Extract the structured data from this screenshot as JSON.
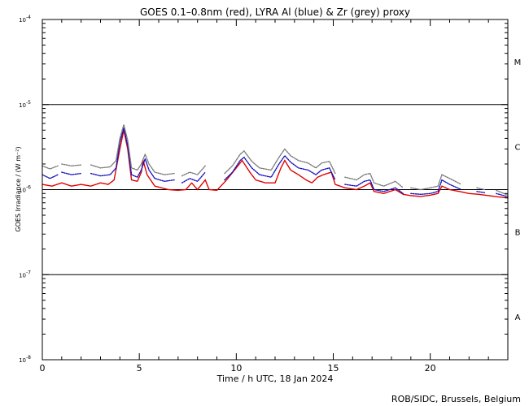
{
  "chart_data": {
    "type": "line",
    "title": "GOES 0.1–0.8nm (red), LYRA Al (blue) & Zr (grey) proxy",
    "xlabel": "Time / h UTC, 18 Jan 2024",
    "ylabel": "GOES Irradiance / (W m⁻²)",
    "footer": "ROB/SIDC, Brussels, Belgium",
    "xlim": [
      0,
      24
    ],
    "ylim": [
      1e-08,
      0.0001
    ],
    "yscale": "log",
    "xticks": [
      0,
      5,
      10,
      15,
      20
    ],
    "xtick_labels": [
      "0",
      "5",
      "10",
      "15",
      "20"
    ],
    "yticks": [
      {
        "value": 0.0001,
        "base": "10",
        "exp": "-4"
      },
      {
        "value": 1e-05,
        "base": "10",
        "exp": "-5"
      },
      {
        "value": 1e-06,
        "base": "10",
        "exp": "-6"
      },
      {
        "value": 1e-07,
        "base": "10",
        "exp": "-7"
      },
      {
        "value": 1e-08,
        "base": "10",
        "exp": "-8"
      }
    ],
    "reference_lines": [
      1e-05,
      1e-06,
      1e-07
    ],
    "flare_classes": [
      {
        "label": "M",
        "value": 3.2e-05
      },
      {
        "label": "C",
        "value": 3.2e-06
      },
      {
        "label": "B",
        "value": 3.2e-07
      },
      {
        "label": "A",
        "value": 3.2e-08
      }
    ],
    "series": [
      {
        "color": "#e00000",
        "segments": [
          [
            [
              0.0,
              1.15e-06
            ],
            [
              0.5,
              1.1e-06
            ],
            [
              1.0,
              1.2e-06
            ],
            [
              1.5,
              1.1e-06
            ],
            [
              2.0,
              1.15e-06
            ],
            [
              2.5,
              1.1e-06
            ],
            [
              3.0,
              1.2e-06
            ],
            [
              3.4,
              1.15e-06
            ],
            [
              3.7,
              1.3e-06
            ],
            [
              4.0,
              3e-06
            ],
            [
              4.2,
              5e-06
            ],
            [
              4.4,
              3e-06
            ],
            [
              4.6,
              1.3e-06
            ],
            [
              4.9,
              1.25e-06
            ],
            [
              5.1,
              1.6e-06
            ],
            [
              5.2,
              2.2e-06
            ],
            [
              5.4,
              1.5e-06
            ],
            [
              5.8,
              1.1e-06
            ],
            [
              6.5,
              1e-06
            ],
            [
              7.0,
              9.8e-07
            ],
            [
              7.4,
              1e-06
            ],
            [
              7.7,
              1.2e-06
            ],
            [
              8.0,
              1e-06
            ],
            [
              8.4,
              1.3e-06
            ],
            [
              8.6,
              1e-06
            ],
            [
              9.0,
              9.8e-07
            ],
            [
              9.5,
              1.3e-06
            ],
            [
              10.0,
              1.8e-06
            ],
            [
              10.3,
              2.2e-06
            ],
            [
              10.7,
              1.6e-06
            ],
            [
              11.0,
              1.3e-06
            ],
            [
              11.5,
              1.2e-06
            ],
            [
              12.0,
              1.2e-06
            ],
            [
              12.3,
              1.8e-06
            ],
            [
              12.5,
              2.2e-06
            ],
            [
              12.8,
              1.7e-06
            ],
            [
              13.2,
              1.5e-06
            ],
            [
              13.6,
              1.3e-06
            ],
            [
              13.9,
              1.2e-06
            ],
            [
              14.2,
              1.4e-06
            ],
            [
              14.5,
              1.5e-06
            ],
            [
              14.9,
              1.6e-06
            ],
            [
              15.1,
              1.15e-06
            ],
            [
              15.6,
              1.05e-06
            ],
            [
              16.2,
              1e-06
            ],
            [
              16.6,
              1.1e-06
            ],
            [
              16.9,
              1.2e-06
            ],
            [
              17.1,
              9.5e-07
            ],
            [
              17.6,
              9e-07
            ],
            [
              18.2,
              1e-06
            ],
            [
              18.6,
              8.8e-07
            ],
            [
              19.0,
              8.5e-07
            ],
            [
              19.5,
              8.3e-07
            ],
            [
              20.0,
              8.6e-07
            ],
            [
              20.4,
              9e-07
            ],
            [
              20.6,
              1.1e-06
            ],
            [
              21.0,
              1e-06
            ],
            [
              21.5,
              9.5e-07
            ],
            [
              22.0,
              9e-07
            ],
            [
              22.5,
              8.8e-07
            ],
            [
              23.0,
              8.5e-07
            ],
            [
              23.5,
              8.2e-07
            ],
            [
              24.0,
              8e-07
            ]
          ]
        ]
      },
      {
        "color": "#1010c0",
        "segments": [
          [
            [
              0.0,
              1.5e-06
            ],
            [
              0.4,
              1.35e-06
            ],
            [
              0.8,
              1.5e-06
            ]
          ],
          [
            [
              1.0,
              1.6e-06
            ],
            [
              1.5,
              1.5e-06
            ],
            [
              2.0,
              1.55e-06
            ]
          ],
          [
            [
              2.5,
              1.55e-06
            ],
            [
              3.0,
              1.45e-06
            ],
            [
              3.5,
              1.5e-06
            ],
            [
              3.8,
              1.8e-06
            ],
            [
              4.0,
              3.6e-06
            ],
            [
              4.2,
              5.3e-06
            ],
            [
              4.4,
              3.3e-06
            ],
            [
              4.6,
              1.5e-06
            ],
            [
              4.9,
              1.4e-06
            ],
            [
              5.1,
              1.7e-06
            ],
            [
              5.3,
              2.3e-06
            ],
            [
              5.5,
              1.7e-06
            ],
            [
              5.8,
              1.35e-06
            ],
            [
              6.3,
              1.25e-06
            ],
            [
              6.8,
              1.3e-06
            ]
          ],
          [
            [
              7.2,
              1.2e-06
            ],
            [
              7.6,
              1.35e-06
            ],
            [
              8.0,
              1.25e-06
            ],
            [
              8.4,
              1.6e-06
            ]
          ],
          [
            [
              9.4,
              1.3e-06
            ],
            [
              9.8,
              1.6e-06
            ],
            [
              10.2,
              2.2e-06
            ],
            [
              10.4,
              2.4e-06
            ],
            [
              10.8,
              1.8e-06
            ],
            [
              11.2,
              1.5e-06
            ],
            [
              11.8,
              1.4e-06
            ],
            [
              12.2,
              2e-06
            ],
            [
              12.5,
              2.5e-06
            ],
            [
              12.8,
              2.1e-06
            ],
            [
              13.2,
              1.8e-06
            ],
            [
              13.7,
              1.7e-06
            ],
            [
              14.1,
              1.5e-06
            ],
            [
              14.4,
              1.7e-06
            ],
            [
              14.8,
              1.8e-06
            ],
            [
              15.1,
              1.3e-06
            ]
          ],
          [
            [
              15.6,
              1.15e-06
            ],
            [
              16.2,
              1.1e-06
            ],
            [
              16.6,
              1.25e-06
            ],
            [
              16.9,
              1.3e-06
            ],
            [
              17.1,
              1e-06
            ],
            [
              17.6,
              9.5e-07
            ],
            [
              18.2,
              1.05e-06
            ],
            [
              18.6,
              9e-07
            ]
          ],
          [
            [
              19.0,
              9e-07
            ],
            [
              19.5,
              8.8e-07
            ],
            [
              20.0,
              9e-07
            ],
            [
              20.4,
              9.5e-07
            ],
            [
              20.6,
              1.3e-06
            ],
            [
              21.0,
              1.15e-06
            ],
            [
              21.6,
              1e-06
            ]
          ],
          [
            [
              22.4,
              9.5e-07
            ],
            [
              22.8,
              9.2e-07
            ]
          ],
          [
            [
              23.4,
              9e-07
            ],
            [
              23.8,
              8.5e-07
            ],
            [
              24.0,
              8.2e-07
            ]
          ]
        ]
      },
      {
        "color": "#7a7a7a",
        "segments": [
          [
            [
              0.0,
              1.9e-06
            ],
            [
              0.4,
              1.75e-06
            ],
            [
              0.8,
              1.9e-06
            ]
          ],
          [
            [
              1.0,
              2e-06
            ],
            [
              1.5,
              1.9e-06
            ],
            [
              2.0,
              1.95e-06
            ]
          ],
          [
            [
              2.5,
              1.95e-06
            ],
            [
              3.0,
              1.8e-06
            ],
            [
              3.5,
              1.85e-06
            ],
            [
              3.8,
              2.2e-06
            ],
            [
              4.0,
              4e-06
            ],
            [
              4.2,
              5.8e-06
            ],
            [
              4.4,
              3.8e-06
            ],
            [
              4.6,
              1.8e-06
            ],
            [
              4.9,
              1.7e-06
            ],
            [
              5.1,
              2e-06
            ],
            [
              5.3,
              2.6e-06
            ],
            [
              5.5,
              2e-06
            ],
            [
              5.8,
              1.6e-06
            ],
            [
              6.3,
              1.5e-06
            ],
            [
              6.8,
              1.55e-06
            ]
          ],
          [
            [
              7.2,
              1.45e-06
            ],
            [
              7.6,
              1.6e-06
            ],
            [
              8.0,
              1.5e-06
            ],
            [
              8.4,
              1.9e-06
            ]
          ],
          [
            [
              9.4,
              1.55e-06
            ],
            [
              9.8,
              1.9e-06
            ],
            [
              10.2,
              2.6e-06
            ],
            [
              10.4,
              2.85e-06
            ],
            [
              10.8,
              2.15e-06
            ],
            [
              11.2,
              1.8e-06
            ],
            [
              11.8,
              1.7e-06
            ],
            [
              12.2,
              2.4e-06
            ],
            [
              12.5,
              3e-06
            ],
            [
              12.8,
              2.5e-06
            ],
            [
              13.2,
              2.2e-06
            ],
            [
              13.7,
              2.05e-06
            ],
            [
              14.1,
              1.8e-06
            ],
            [
              14.4,
              2.05e-06
            ],
            [
              14.8,
              2.15e-06
            ],
            [
              15.1,
              1.55e-06
            ]
          ],
          [
            [
              15.6,
              1.4e-06
            ],
            [
              16.2,
              1.3e-06
            ],
            [
              16.6,
              1.5e-06
            ],
            [
              16.9,
              1.55e-06
            ],
            [
              17.1,
              1.2e-06
            ],
            [
              17.6,
              1.1e-06
            ],
            [
              18.2,
              1.25e-06
            ],
            [
              18.6,
              1.05e-06
            ]
          ],
          [
            [
              19.0,
              1.05e-06
            ],
            [
              19.5,
              1e-06
            ],
            [
              20.0,
              1.05e-06
            ],
            [
              20.4,
              1.1e-06
            ],
            [
              20.6,
              1.5e-06
            ],
            [
              21.0,
              1.35e-06
            ],
            [
              21.6,
              1.15e-06
            ]
          ],
          [
            [
              22.4,
              1.05e-06
            ],
            [
              22.8,
              1e-06
            ]
          ],
          [
            [
              23.4,
              9.8e-07
            ],
            [
              23.8,
              9e-07
            ],
            [
              24.0,
              8.6e-07
            ]
          ]
        ]
      }
    ]
  }
}
